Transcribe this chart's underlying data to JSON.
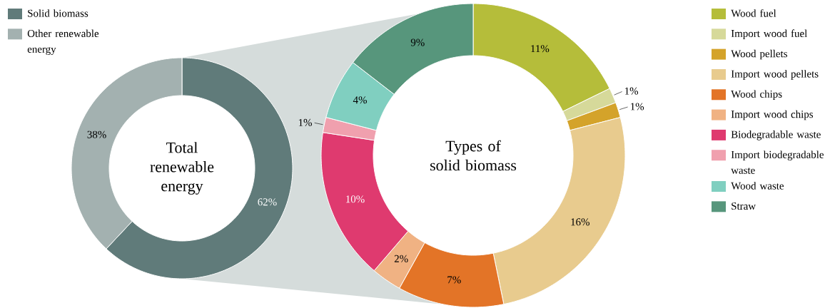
{
  "chart_data": [
    {
      "type": "donut",
      "title": "Total renewable energy",
      "categories": [
        "Solid biomass",
        "Other renewable energy"
      ],
      "values": [
        62,
        38
      ],
      "colors": [
        "#607b7a",
        "#a3b1b0"
      ],
      "value_labels": [
        "62%",
        "38%"
      ],
      "legend": "top left"
    },
    {
      "type": "donut",
      "title": "Types of solid biomass",
      "categories": [
        "Wood fuel",
        "Import wood fuel",
        "Wood pellets",
        "Import wood pellets",
        "Wood chips",
        "Import wood chips",
        "Biodegradable waste",
        "Import biodegradable waste",
        "Wood waste",
        "Straw"
      ],
      "values": [
        11,
        1,
        1,
        16,
        7,
        2,
        10,
        1,
        4,
        9
      ],
      "colors": [
        "#b5bd3a",
        "#d6d99a",
        "#d4a32a",
        "#e8cb8e",
        "#e37427",
        "#f0b283",
        "#df3a6f",
        "#f0a0ae",
        "#80cfc0",
        "#57967c"
      ],
      "value_labels": [
        "11%",
        "1%",
        "1%",
        "16%",
        "7%",
        "2%",
        "10%",
        "1%",
        "4%",
        "9%"
      ],
      "legend": "right"
    }
  ]
}
